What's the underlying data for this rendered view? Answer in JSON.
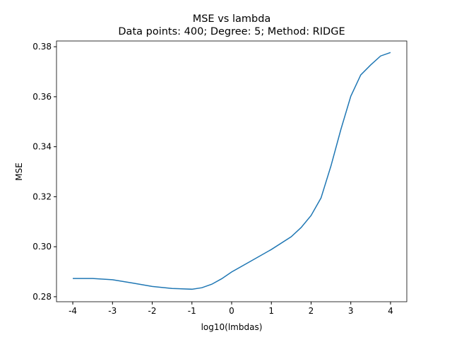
{
  "chart_data": {
    "type": "line",
    "title": "MSE vs lambda",
    "subtitle": "Data points: 400; Degree: 5; Method: RIDGE",
    "xlabel": "log10(lmbdas)",
    "ylabel": "MSE",
    "x": [
      -4,
      -3.5,
      -3,
      -2.5,
      -2,
      -1.5,
      -1,
      -0.75,
      -0.5,
      -0.25,
      0,
      0.5,
      1,
      1.5,
      1.75,
      2,
      2.25,
      2.5,
      2.75,
      3,
      3.25,
      3.5,
      3.75,
      4
    ],
    "series": [
      {
        "name": "MSE",
        "color": "#1f77b4",
        "values": [
          0.2873,
          0.2873,
          0.2868,
          0.2855,
          0.2841,
          0.2833,
          0.283,
          0.2836,
          0.285,
          0.2872,
          0.2899,
          0.2944,
          0.2989,
          0.304,
          0.3077,
          0.3125,
          0.3195,
          0.3323,
          0.3469,
          0.3602,
          0.3687,
          0.3727,
          0.3763,
          0.3777
        ]
      }
    ],
    "xlim": [
      -4.41,
      4.41
    ],
    "ylim": [
      0.278,
      0.3823
    ],
    "xticks": [
      -4,
      -3,
      -2,
      -1,
      0,
      1,
      2,
      3,
      4
    ],
    "yticks": [
      {
        "value": 0.28,
        "label": "0.28"
      },
      {
        "value": 0.3,
        "label": "0.30"
      },
      {
        "value": 0.32,
        "label": "0.32"
      },
      {
        "value": 0.34,
        "label": "0.34"
      },
      {
        "value": 0.36,
        "label": "0.36"
      },
      {
        "value": 0.38,
        "label": "0.38"
      }
    ]
  }
}
